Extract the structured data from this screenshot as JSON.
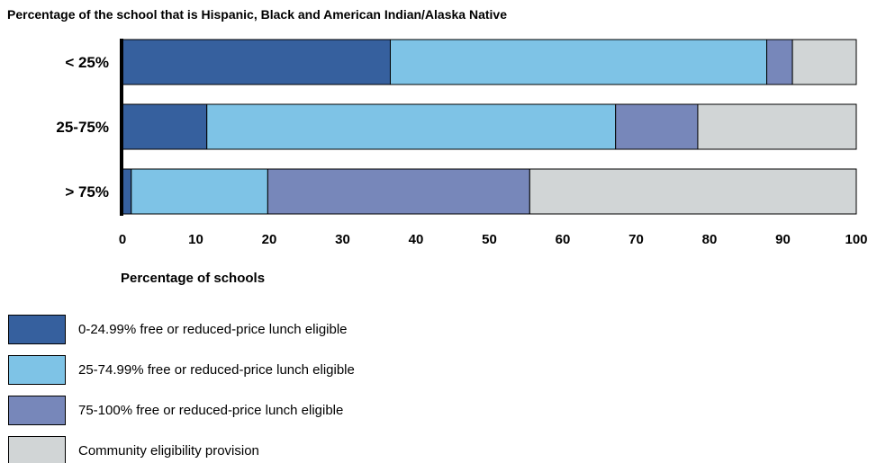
{
  "chart_data": {
    "type": "bar",
    "orientation": "horizontal",
    "stacked": true,
    "title": "Percentage of the school that is Hispanic, Black and American Indian/Alaska Native",
    "xlabel": "Percentage of schools",
    "ylabel": "",
    "xlim": [
      0,
      100
    ],
    "x_ticks": [
      "0",
      "10",
      "20",
      "30",
      "40",
      "50",
      "60",
      "70",
      "80",
      "90",
      "100"
    ],
    "categories": [
      "< 25%",
      "25-75%",
      "> 75%"
    ],
    "series": [
      {
        "name": "0-24.99% free or reduced-price lunch eligible",
        "color": "#36609e",
        "values": [
          36.5,
          11.5,
          1.2
        ]
      },
      {
        "name": "25-74.99% free or reduced-price lunch eligible",
        "color": "#7ec3e6",
        "values": [
          51.3,
          55.7,
          18.6
        ]
      },
      {
        "name": "75-100% free or reduced-price lunch eligible",
        "color": "#7787ba",
        "values": [
          3.5,
          11.2,
          35.7
        ]
      },
      {
        "name": "Community eligibility provision",
        "color": "#d1d5d6",
        "values": [
          8.7,
          21.6,
          44.5
        ]
      }
    ],
    "grid": false,
    "legend_position": "bottom-left"
  }
}
